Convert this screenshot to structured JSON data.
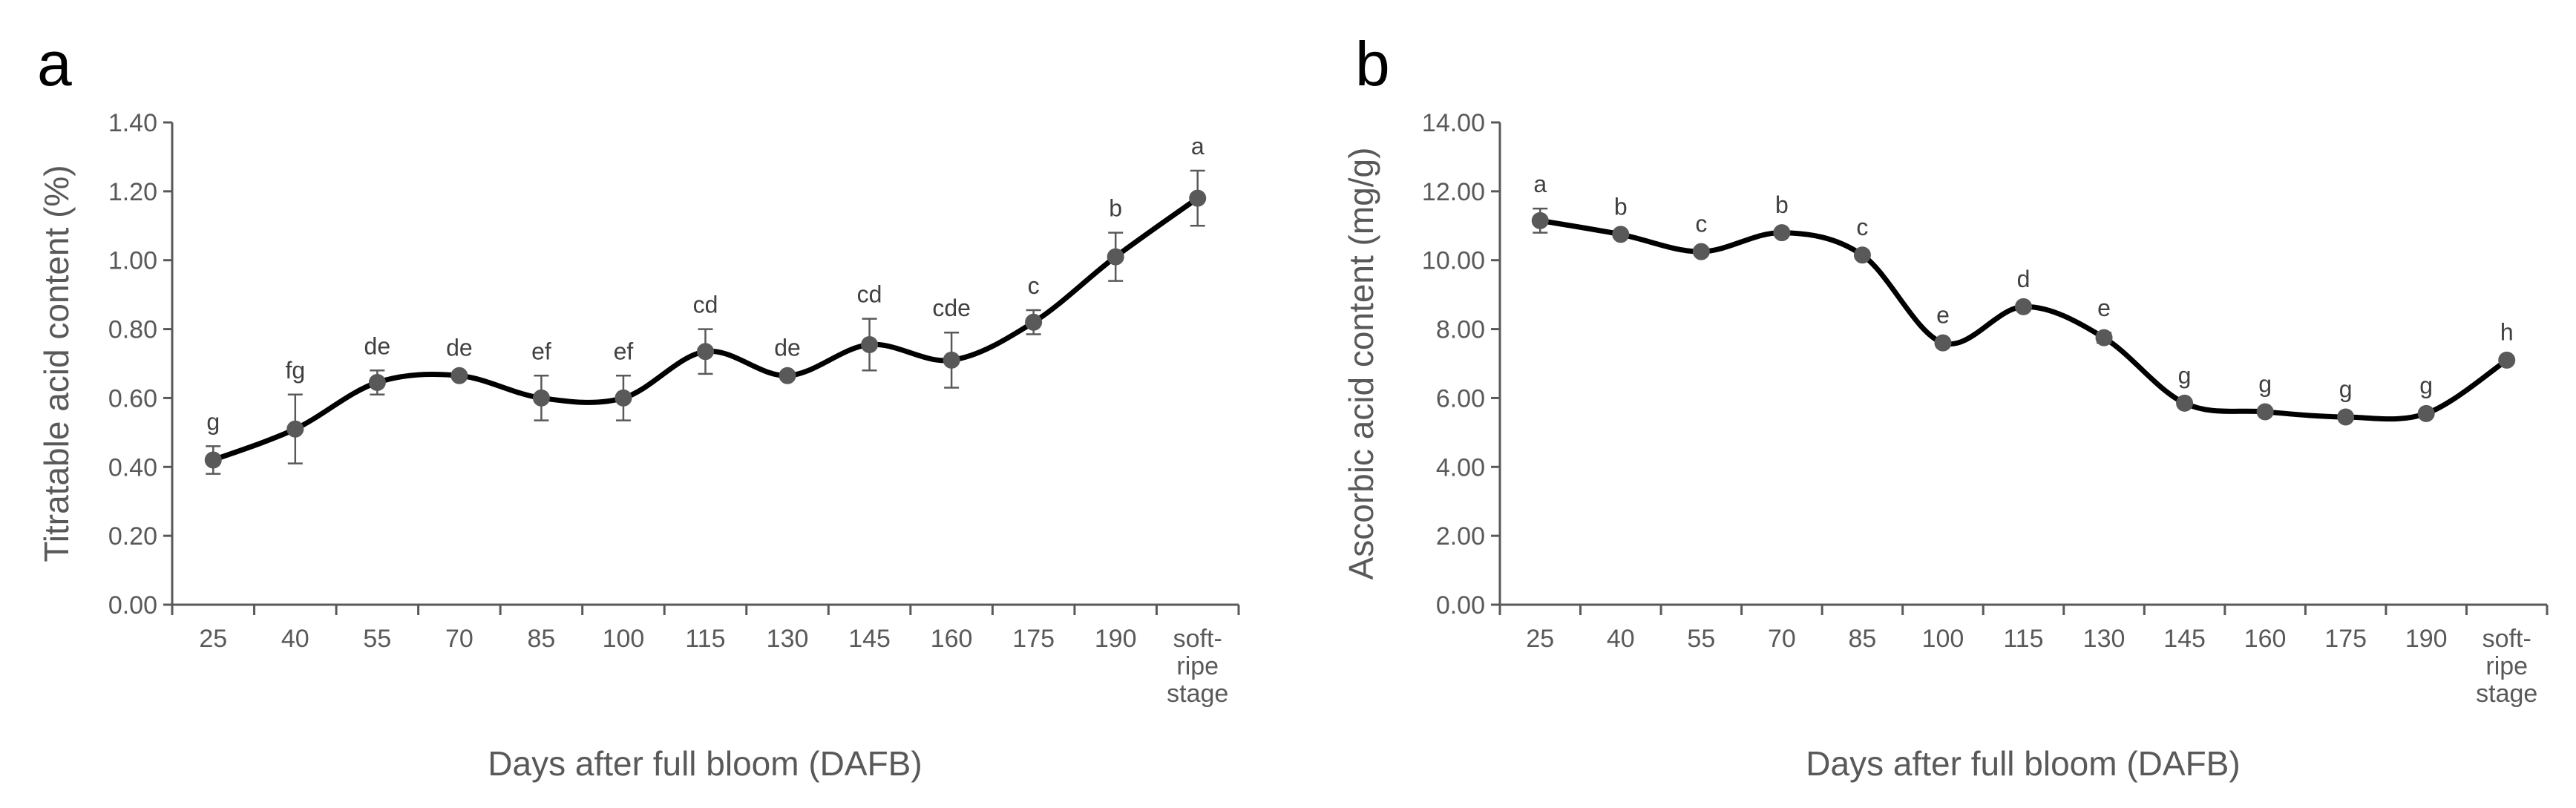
{
  "chart_data": [
    {
      "panel": "a",
      "type": "line",
      "title": "",
      "xlabel": "Days after full bloom (DAFB)",
      "ylabel": "Titratable acid content (%)",
      "categories": [
        "25",
        "40",
        "55",
        "70",
        "85",
        "100",
        "115",
        "130",
        "145",
        "160",
        "175",
        "190",
        "soft-ripe stage"
      ],
      "category_lines": [
        [
          "25"
        ],
        [
          "40"
        ],
        [
          "55"
        ],
        [
          "70"
        ],
        [
          "85"
        ],
        [
          "100"
        ],
        [
          "115"
        ],
        [
          "130"
        ],
        [
          "145"
        ],
        [
          "160"
        ],
        [
          "175"
        ],
        [
          "190"
        ],
        [
          "soft-",
          "ripe",
          "stage"
        ]
      ],
      "values": [
        0.42,
        0.51,
        0.645,
        0.665,
        0.6,
        0.6,
        0.735,
        0.665,
        0.755,
        0.71,
        0.82,
        1.01,
        1.18
      ],
      "errors": [
        0.04,
        0.1,
        0.035,
        0.01,
        0.065,
        0.065,
        0.065,
        0.01,
        0.075,
        0.08,
        0.035,
        0.07,
        0.08
      ],
      "significance": [
        "g",
        "fg",
        "de",
        "de",
        "ef",
        "ef",
        "cd",
        "de",
        "cd",
        "cde",
        "c",
        "b",
        "a"
      ],
      "ylim": [
        0,
        1.4
      ],
      "yticks": [
        0,
        0.2,
        0.4,
        0.6,
        0.8,
        1.0,
        1.2,
        1.4
      ],
      "ytick_labels": [
        "0.00",
        "0.20",
        "0.40",
        "0.60",
        "0.80",
        "1.00",
        "1.20",
        "1.40"
      ],
      "grid": false
    },
    {
      "panel": "b",
      "type": "line",
      "title": "",
      "xlabel": "Days after full bloom (DAFB)",
      "ylabel": "Ascorbic acid content (mg/g)",
      "categories": [
        "25",
        "40",
        "55",
        "70",
        "85",
        "100",
        "115",
        "130",
        "145",
        "160",
        "175",
        "190",
        "soft-ripe stage"
      ],
      "category_lines": [
        [
          "25"
        ],
        [
          "40"
        ],
        [
          "55"
        ],
        [
          "70"
        ],
        [
          "85"
        ],
        [
          "100"
        ],
        [
          "115"
        ],
        [
          "130"
        ],
        [
          "145"
        ],
        [
          "160"
        ],
        [
          "175"
        ],
        [
          "190"
        ],
        [
          "soft-",
          "ripe",
          "stage"
        ]
      ],
      "values": [
        11.15,
        10.75,
        10.25,
        10.8,
        10.15,
        7.6,
        8.65,
        7.75,
        5.85,
        5.6,
        5.45,
        5.55,
        7.1
      ],
      "errors": [
        0.35,
        0.1,
        0.1,
        0.1,
        0.1,
        0.1,
        0.1,
        0.15,
        0.1,
        0.1,
        0.1,
        0.1,
        0.1
      ],
      "significance": [
        "a",
        "b",
        "c",
        "b",
        "c",
        "e",
        "d",
        "e",
        "g",
        "g",
        "g",
        "g",
        "h"
      ],
      "ylim": [
        0,
        14
      ],
      "yticks": [
        0,
        2,
        4,
        6,
        8,
        10,
        12,
        14
      ],
      "ytick_labels": [
        "0.00",
        "2.00",
        "4.00",
        "6.00",
        "8.00",
        "10.00",
        "12.00",
        "14.00"
      ],
      "grid": false
    }
  ],
  "colors": {
    "line": "#000000",
    "marker": "#595959",
    "axis": "#595959",
    "text": "#595959"
  }
}
